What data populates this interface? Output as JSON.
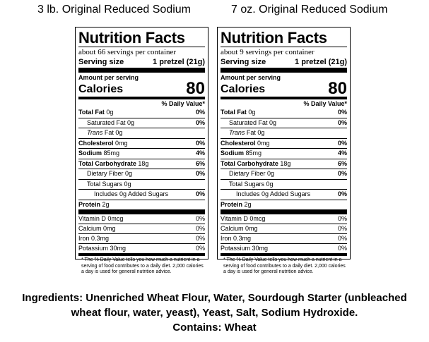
{
  "headings": {
    "left": "3 lb. Original Reduced Sodium",
    "right": "7 oz. Original Reduced Sodium"
  },
  "labels": [
    {
      "title": "Nutrition Facts",
      "servings": "about 66 servings per container",
      "serving_size_label": "Serving size",
      "serving_size_value": "1 pretzel (21g)",
      "amount_per_serving": "Amount per serving",
      "calories_label": "Calories",
      "calories_value": "80",
      "dv_header": "% Daily Value*",
      "nutrients": [
        {
          "name": "Total Fat",
          "amount": "0g",
          "pct": "0%"
        },
        {
          "name": "Saturated Fat",
          "amount": "0g",
          "pct": "0%"
        },
        {
          "name": "Trans",
          "name_suffix": " Fat 0g",
          "pct": ""
        },
        {
          "name": "Cholesterol",
          "amount": "0mg",
          "pct": "0%"
        },
        {
          "name": "Sodium",
          "amount": "85mg",
          "pct": "4%"
        },
        {
          "name": "Total Carbohydrate",
          "amount": "18g",
          "pct": "6%"
        },
        {
          "name": "Dietary Fiber",
          "amount": "0g",
          "pct": "0%"
        },
        {
          "name": "Total Sugars",
          "amount": "0g",
          "pct": ""
        },
        {
          "name": "Includes 0g Added Sugars",
          "amount": "",
          "pct": "0%"
        },
        {
          "name": "Protein",
          "amount": "2g",
          "pct": ""
        }
      ],
      "vitamins": [
        {
          "name": "Vitamin D 0mcg",
          "pct": "0%"
        },
        {
          "name": "Calcium 0mg",
          "pct": "0%"
        },
        {
          "name": "Iron 0.3mg",
          "pct": "0%"
        },
        {
          "name": "Potassium 30mg",
          "pct": "0%"
        }
      ],
      "footnote": "* The % Daily Value tells you how much a nutrient in a serving of food contributes to a daily diet. 2,000 calories a day is used for general nutrition advice."
    },
    {
      "title": "Nutrition Facts",
      "servings": "about 9 servings per container",
      "serving_size_label": "Serving size",
      "serving_size_value": "1 pretzel (21g)",
      "amount_per_serving": "Amount per serving",
      "calories_label": "Calories",
      "calories_value": "80",
      "dv_header": "% Daily Value*",
      "nutrients": [
        {
          "name": "Total Fat",
          "amount": "0g",
          "pct": "0%"
        },
        {
          "name": "Saturated Fat",
          "amount": "0g",
          "pct": "0%"
        },
        {
          "name": "Trans",
          "name_suffix": " Fat 0g",
          "pct": ""
        },
        {
          "name": "Cholesterol",
          "amount": "0mg",
          "pct": "0%"
        },
        {
          "name": "Sodium",
          "amount": "85mg",
          "pct": "4%"
        },
        {
          "name": "Total Carbohydrate",
          "amount": "18g",
          "pct": "6%"
        },
        {
          "name": "Dietary Fiber",
          "amount": "0g",
          "pct": "0%"
        },
        {
          "name": "Total Sugars",
          "amount": "0g",
          "pct": ""
        },
        {
          "name": "Includes 0g Added Sugars",
          "amount": "",
          "pct": "0%"
        },
        {
          "name": "Protein",
          "amount": "2g",
          "pct": ""
        }
      ],
      "vitamins": [
        {
          "name": "Vitamin D 0mcg",
          "pct": "0%"
        },
        {
          "name": "Calcium 0mg",
          "pct": "0%"
        },
        {
          "name": "Iron 0.3mg",
          "pct": "0%"
        },
        {
          "name": "Potassium 30mg",
          "pct": "0%"
        }
      ],
      "footnote": "* The % Daily Value tells you how much a nutrient in a serving of food contributes to a daily diet. 2,000 calories a day is used for general nutrition advice."
    }
  ],
  "ingredients": {
    "line1": "Ingredients: Unenriched Wheat Flour, Water, Sourdough Starter (unbleached",
    "line2": "wheat flour, water, yeast), Yeast, Salt, Sodium Hydroxide.",
    "line3": "Contains: Wheat"
  }
}
